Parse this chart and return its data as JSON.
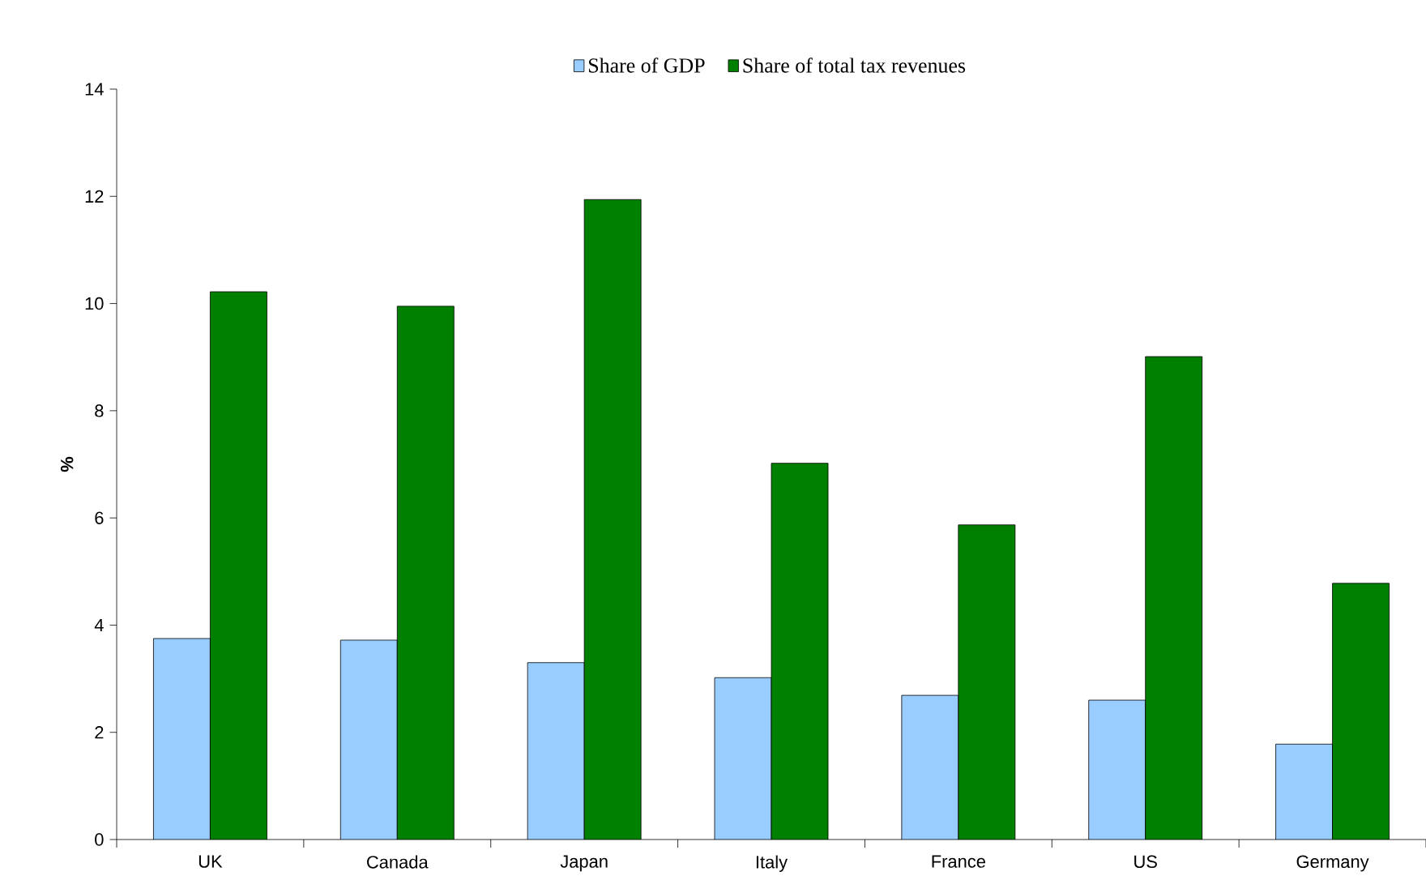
{
  "chart_data": {
    "type": "bar",
    "ylabel": "%",
    "categories": [
      "UK",
      "Canada",
      "Japan",
      "Italy",
      "France",
      "US",
      "Germany"
    ],
    "series": [
      {
        "name": "Share of GDP",
        "color": "#99ccff",
        "values": [
          3.75,
          3.72,
          3.3,
          3.02,
          2.69,
          2.6,
          1.78
        ]
      },
      {
        "name": "Share of total  tax revenues",
        "color": "#008000",
        "values": [
          10.22,
          9.95,
          11.94,
          7.02,
          5.87,
          9.01,
          4.78
        ]
      }
    ],
    "ylim": [
      0,
      14
    ],
    "yticks": [
      0,
      2,
      4,
      6,
      8,
      10,
      12,
      14
    ],
    "legend": "top",
    "grid": false
  }
}
